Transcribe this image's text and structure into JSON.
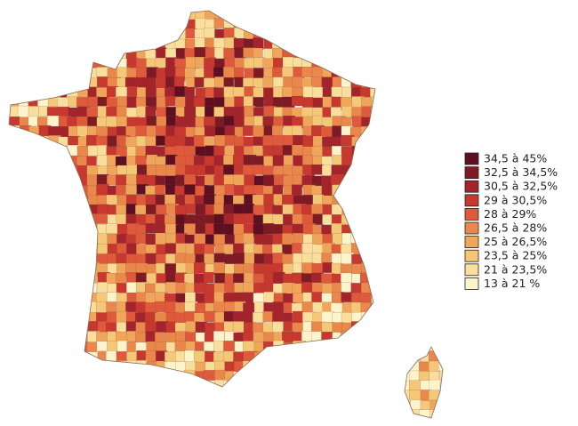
{
  "legend": {
    "items": [
      {
        "label": "34,5 à 45%",
        "color": "#5e1020"
      },
      {
        "label": "32,5 à 34,5%",
        "color": "#7d1a24"
      },
      {
        "label": "30,5 à 32,5%",
        "color": "#a3242b"
      },
      {
        "label": "29 à 30,5%",
        "color": "#c7382e"
      },
      {
        "label": "28 à 29%",
        "color": "#de5a3a"
      },
      {
        "label": "26,5 à 28%",
        "color": "#ea874b"
      },
      {
        "label": "25 à 26,5%",
        "color": "#f0a65a"
      },
      {
        "label": "23,5 à 25%",
        "color": "#f5c878"
      },
      {
        "label": "21 à 23,5%",
        "color": "#f9de9c"
      },
      {
        "label": "13 à 21 %",
        "color": "#fdf4cc"
      }
    ]
  }
}
